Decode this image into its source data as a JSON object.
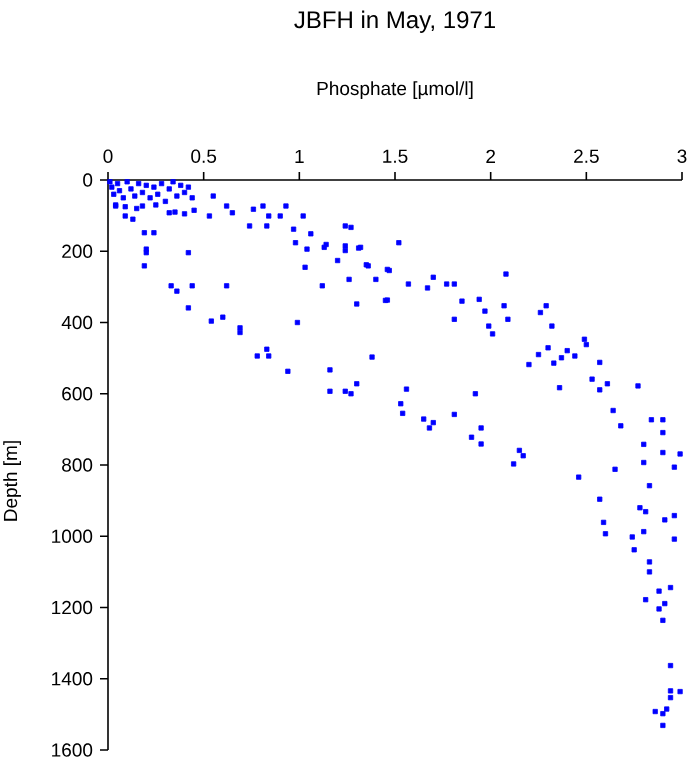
{
  "chart_data": {
    "type": "scatter",
    "title": "JBFH in May, 1971",
    "xlabel": "Phosphate [µmol/l]",
    "ylabel": "Depth [m]",
    "color": "#0000ff",
    "marker": "square",
    "xlim": [
      0,
      3
    ],
    "ylim": [
      1600,
      0
    ],
    "xticks": [
      0,
      0.5,
      1,
      1.5,
      2,
      2.5,
      3
    ],
    "yticks": [
      0,
      200,
      400,
      600,
      800,
      1000,
      1200,
      1400,
      1600
    ],
    "x": [
      0.01,
      0.02,
      0.03,
      0.05,
      0.06,
      0.08,
      0.1,
      0.12,
      0.14,
      0.16,
      0.18,
      0.2,
      0.22,
      0.24,
      0.26,
      0.28,
      0.3,
      0.32,
      0.34,
      0.36,
      0.38,
      0.4,
      0.42,
      0.44,
      0.04,
      0.09,
      0.15,
      0.25,
      0.35,
      0.4,
      0.45,
      0.04,
      0.09,
      0.13,
      0.18,
      0.19,
      0.2,
      0.2,
      0.19,
      0.24,
      0.32,
      0.42,
      0.33,
      0.36,
      0.44,
      0.42,
      0.55,
      0.53,
      0.62,
      0.62,
      0.54,
      0.6,
      0.69,
      0.69,
      0.65,
      0.76,
      0.74,
      0.81,
      0.83,
      0.84,
      0.9,
      0.93,
      0.97,
      0.98,
      1.02,
      1.04,
      1.03,
      0.78,
      0.83,
      0.84,
      0.94,
      0.99,
      1.12,
      1.13,
      1.24,
      1.26,
      1.3,
      1.35,
      1.4,
      1.45,
      1.46,
      1.32,
      1.2,
      1.24,
      1.06,
      1.14,
      1.24,
      1.27,
      1.31,
      1.36,
      1.52,
      1.47,
      1.57,
      1.46,
      1.67,
      1.7,
      1.77,
      1.81,
      1.85,
      1.94,
      1.97,
      1.99,
      2.01,
      2.08,
      2.07,
      2.09,
      1.81,
      2.26,
      2.29,
      2.32,
      2.3,
      2.25,
      2.2,
      2.33,
      2.37,
      2.4,
      2.44,
      2.49,
      2.5,
      2.57,
      2.53,
      2.57,
      2.61,
      2.36,
      2.77,
      2.64,
      2.68,
      2.84,
      2.9,
      2.9,
      2.8,
      2.9,
      2.99,
      2.96,
      1.16,
      1.16,
      1.24,
      1.27,
      1.3,
      1.38,
      1.56,
      1.53,
      1.54,
      1.65,
      1.7,
      1.68,
      1.81,
      1.92,
      1.95,
      1.9,
      1.95,
      2.15,
      2.17,
      2.12,
      2.46,
      2.65,
      2.8,
      2.83,
      2.57,
      2.78,
      2.81,
      2.96,
      2.91,
      2.59,
      2.6,
      2.8,
      2.74,
      2.96,
      2.75,
      2.83,
      2.83,
      2.94,
      2.88,
      2.81,
      2.91,
      2.88,
      2.9,
      2.94,
      2.94,
      2.94,
      2.99,
      2.92,
      2.86,
      2.9,
      2.9
    ],
    "values": [
      5,
      20,
      40,
      10,
      30,
      50,
      5,
      25,
      45,
      10,
      35,
      15,
      50,
      20,
      40,
      10,
      60,
      25,
      5,
      45,
      15,
      35,
      20,
      50,
      70,
      75,
      80,
      70,
      90,
      95,
      85,
      73,
      101,
      110,
      73,
      148,
      194,
      204,
      241,
      148,
      92,
      204,
      297,
      312,
      297,
      359,
      45,
      101,
      73,
      297,
      396,
      385,
      415,
      428,
      92,
      82,
      129,
      73,
      129,
      101,
      101,
      73,
      138,
      176,
      101,
      194,
      245,
      494,
      475,
      494,
      537,
      400,
      297,
      189,
      129,
      279,
      348,
      238,
      279,
      338,
      251,
      189,
      226,
      185,
      151,
      181,
      198,
      133,
      191,
      241,
      176,
      254,
      292,
      337,
      303,
      273,
      292,
      292,
      340,
      335,
      368,
      410,
      432,
      264,
      353,
      391,
      391,
      372,
      353,
      410,
      471,
      490,
      518,
      514,
      499,
      479,
      494,
      447,
      462,
      512,
      559,
      589,
      572,
      583,
      578,
      647,
      690,
      673,
      673,
      709,
      742,
      765,
      769,
      806,
      533,
      593,
      593,
      600,
      572,
      497,
      587,
      628,
      655,
      671,
      681,
      696,
      658,
      600,
      696,
      722,
      741,
      759,
      774,
      797,
      834,
      812,
      793,
      858,
      896,
      920,
      931,
      942,
      954,
      961,
      993,
      987,
      1002,
      1008,
      1038,
      1072,
      1100,
      1144,
      1154,
      1178,
      1189,
      1204,
      1236,
      1363,
      1434,
      1453,
      1436,
      1485,
      1492,
      1498,
      1531
    ]
  }
}
